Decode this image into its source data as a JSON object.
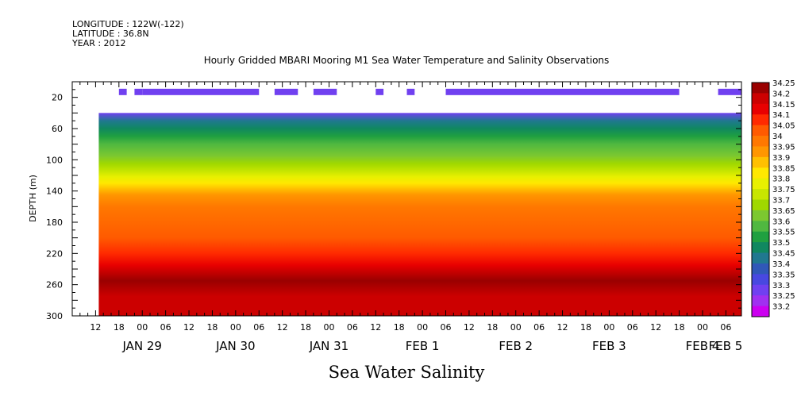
{
  "header": {
    "longitude": "LONGITUDE : 122W(-122)",
    "latitude": "LATITUDE : 36.8N",
    "year": "YEAR : 2012"
  },
  "chart_data": {
    "type": "heatmap",
    "title": "Hourly Gridded MBARI Mooring M1 Sea Water Temperature and Salinity Observations",
    "xlabel": "Sea Water Salinity",
    "ylabel": "DEPTH (m)",
    "x_start": "2012-01-29 06:00",
    "x_end": "2012-02-05 10:00",
    "x_hour_ticks": [
      "12",
      "18",
      "00",
      "06",
      "12",
      "18",
      "00",
      "06",
      "12",
      "18",
      "00",
      "06",
      "12",
      "18",
      "00",
      "06",
      "12",
      "18",
      "00",
      "06",
      "12",
      "18",
      "00",
      "06",
      "12",
      "18",
      "00",
      "06"
    ],
    "x_day_labels": [
      "JAN 29",
      "JAN 30",
      "JAN 31",
      "FEB  1",
      "FEB  2",
      "FEB  3",
      "FEB  4",
      "FEB  5"
    ],
    "ylim": [
      300,
      0
    ],
    "y_ticks": [
      20,
      60,
      100,
      140,
      180,
      220,
      260,
      300
    ],
    "y_inverted": true,
    "data_top_depth": 40,
    "near_surface_depth": 10,
    "near_surface_segments": [
      [
        "2012-01-29 18:00",
        "2012-01-29 20:00"
      ],
      [
        "2012-01-29 22:00",
        "2012-01-30 00:00"
      ],
      [
        "2012-01-30 00:00",
        "2012-01-31 06:00"
      ],
      [
        "2012-01-31 10:00",
        "2012-01-31 16:00"
      ],
      [
        "2012-01-31 20:00",
        "2012-02-01 02:00"
      ],
      [
        "2012-02-01 12:00",
        "2012-02-01 14:00"
      ],
      [
        "2012-02-01 20:00",
        "2012-02-01 22:00"
      ],
      [
        "2012-02-02 06:00",
        "2012-02-04 18:00"
      ],
      [
        "2012-02-05 04:00",
        "2012-02-05 10:00"
      ]
    ],
    "depth_profile": [
      {
        "depth": 40,
        "value": 33.3
      },
      {
        "depth": 50,
        "value": 33.45
      },
      {
        "depth": 60,
        "value": 33.5
      },
      {
        "depth": 70,
        "value": 33.55
      },
      {
        "depth": 80,
        "value": 33.6
      },
      {
        "depth": 95,
        "value": 33.65
      },
      {
        "depth": 105,
        "value": 33.7
      },
      {
        "depth": 115,
        "value": 33.75
      },
      {
        "depth": 122,
        "value": 33.8
      },
      {
        "depth": 130,
        "value": 33.85
      },
      {
        "depth": 137,
        "value": 33.9
      },
      {
        "depth": 145,
        "value": 33.95
      },
      {
        "depth": 160,
        "value": 34.0
      },
      {
        "depth": 200,
        "value": 34.05
      },
      {
        "depth": 220,
        "value": 34.1
      },
      {
        "depth": 235,
        "value": 34.15
      },
      {
        "depth": 255,
        "value": 34.25
      },
      {
        "depth": 275,
        "value": 34.2
      },
      {
        "depth": 300,
        "value": 34.2
      }
    ],
    "colorbar": {
      "levels": [
        "34.25",
        "34.2",
        "34.15",
        "34.1",
        "34.05",
        "34",
        "33.95",
        "33.9",
        "33.85",
        "33.8",
        "33.75",
        "33.7",
        "33.65",
        "33.6",
        "33.55",
        "33.5",
        "33.45",
        "33.4",
        "33.35",
        "33.3",
        "33.25",
        "33.2"
      ],
      "colors": [
        "#9a0000",
        "#cc0000",
        "#e80000",
        "#ff2a00",
        "#ff5a00",
        "#ff7800",
        "#ff9600",
        "#ffc000",
        "#ffe800",
        "#e8f000",
        "#c8e600",
        "#a0d800",
        "#7cc830",
        "#50b840",
        "#20a040",
        "#108860",
        "#207890",
        "#3058b8",
        "#4848e0",
        "#7040f0",
        "#a030f0",
        "#cc00f0"
      ]
    }
  }
}
